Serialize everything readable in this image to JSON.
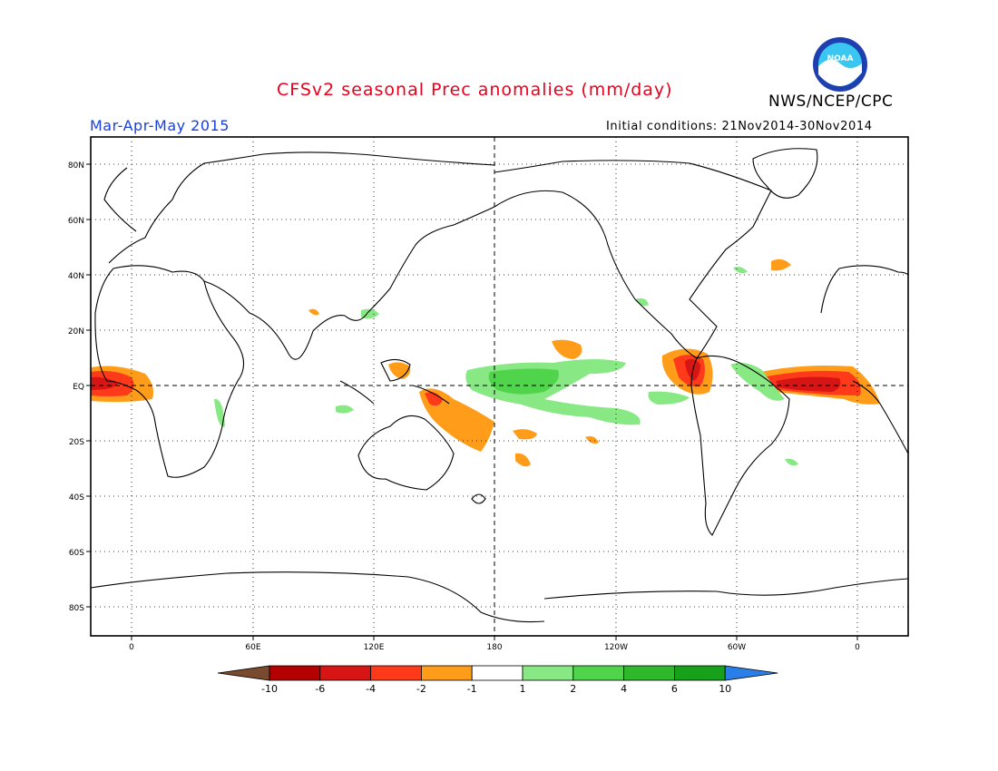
{
  "header": {
    "title": "CFSv2 seasonal Prec anomalies (mm/day)",
    "agency": "NWS/NCEP/CPC",
    "season": "Mar-Apr-May 2015",
    "initial_conditions": "Initial conditions: 21Nov2014-30Nov2014",
    "logo_text": "NOAA"
  },
  "map": {
    "lat_labels": [
      "80N",
      "60N",
      "40N",
      "20N",
      "EQ",
      "20S",
      "40S",
      "60S",
      "80S"
    ],
    "lon_labels": [
      "0",
      "60E",
      "120E",
      "180",
      "120W",
      "60W",
      "0"
    ],
    "projection": "cylindrical equidistant, 20W–20E wrap",
    "gridlines": "dotted every 20 degrees latitude and 30 degrees longitude"
  },
  "legend": {
    "labels": [
      "-10",
      "-6",
      "-4",
      "-2",
      "-1",
      "1",
      "2",
      "4",
      "6",
      "10"
    ],
    "colors": [
      "#7a4a30",
      "#b30000",
      "#d81515",
      "#ff3a1a",
      "#ff9d1a",
      "#ffffff",
      "#88e884",
      "#4fd44b",
      "#2fb82c",
      "#17a019",
      "#2a7ee8"
    ]
  },
  "anomaly_colors": {
    "dry_strong": "#d81515",
    "dry_moderate": "#ff3a1a",
    "dry_weak": "#ff9d1a",
    "wet_weak": "#88e884",
    "wet_moderate": "#4fd44b"
  }
}
